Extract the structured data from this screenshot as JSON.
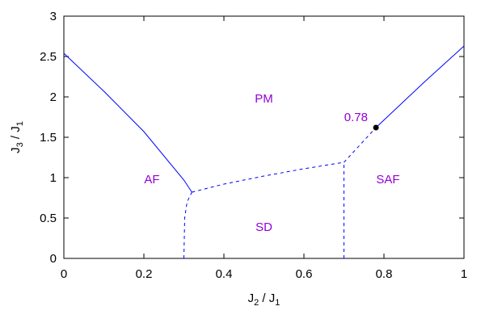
{
  "chart_data": {
    "type": "line",
    "title": "",
    "xlabel": {
      "main": "J",
      "sub1": "2",
      "sep": " / J",
      "sub2": "1"
    },
    "ylabel": {
      "main": "J",
      "sub1": "3",
      "sep": " / J",
      "sub2": "1"
    },
    "xlim": [
      0,
      1
    ],
    "ylim": [
      0,
      3
    ],
    "xticks": [
      {
        "value": 0,
        "label": "0"
      },
      {
        "value": 0.2,
        "label": "0.2"
      },
      {
        "value": 0.4,
        "label": "0.4"
      },
      {
        "value": 0.6,
        "label": "0.6"
      },
      {
        "value": 0.8,
        "label": "0.8"
      },
      {
        "value": 1,
        "label": "1"
      }
    ],
    "yticks": [
      {
        "value": 0,
        "label": "0"
      },
      {
        "value": 0.5,
        "label": "0.5"
      },
      {
        "value": 1,
        "label": "1"
      },
      {
        "value": 1.5,
        "label": "1.5"
      },
      {
        "value": 2,
        "label": "2"
      },
      {
        "value": 2.5,
        "label": "2.5"
      },
      {
        "value": 3,
        "label": "3"
      }
    ],
    "grid": false,
    "line_color": "#0000ff",
    "label_color": "#9400d3",
    "series": [
      {
        "style": "solid",
        "x": [
          0,
          0.1,
          0.2,
          0.3,
          0.32
        ],
        "y": [
          2.54,
          2.07,
          1.57,
          0.97,
          0.82
        ]
      },
      {
        "style": "dashed",
        "x": [
          0.3,
          0.302,
          0.308,
          0.32
        ],
        "y": [
          0,
          0.5,
          0.7,
          0.82
        ]
      },
      {
        "style": "dashed",
        "x": [
          0.32,
          0.4,
          0.5,
          0.6,
          0.7
        ],
        "y": [
          0.82,
          0.92,
          1.02,
          1.11,
          1.19
        ]
      },
      {
        "style": "dashed",
        "x": [
          0.7,
          0.7
        ],
        "y": [
          0,
          1.19
        ]
      },
      {
        "style": "dashed",
        "x": [
          0.7,
          0.78
        ],
        "y": [
          1.19,
          1.62
        ]
      },
      {
        "style": "solid",
        "x": [
          0.78,
          0.9,
          1.0
        ],
        "y": [
          1.62,
          2.18,
          2.63
        ]
      }
    ],
    "points": [
      {
        "x": 0.78,
        "y": 1.62,
        "name": "critical-point"
      }
    ],
    "annotations": [
      {
        "text": "PM",
        "x": 0.5,
        "y": 1.98
      },
      {
        "text": "AF",
        "x": 0.22,
        "y": 0.98
      },
      {
        "text": "SD",
        "x": 0.5,
        "y": 0.39
      },
      {
        "text": "SAF",
        "x": 0.81,
        "y": 0.98
      },
      {
        "text": "0.78",
        "x": 0.73,
        "y": 1.75
      }
    ]
  }
}
